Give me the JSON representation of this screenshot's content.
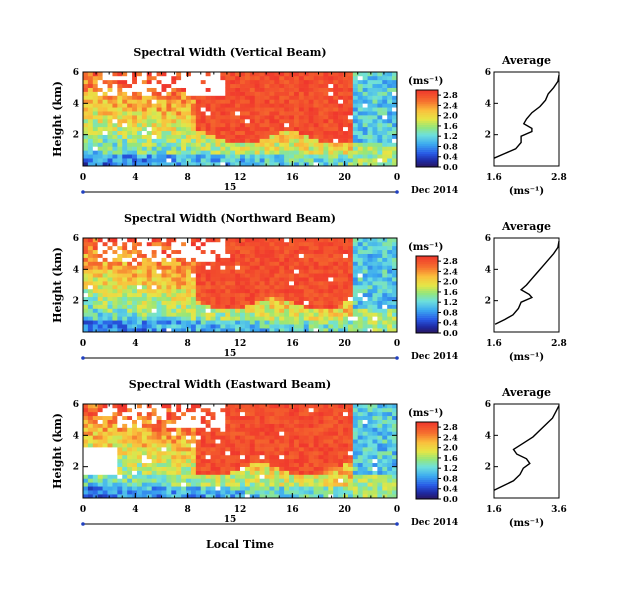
{
  "figure": {
    "xlabel_bottom": "Local Time",
    "date_label": "Dec 2014",
    "day_label": "15"
  },
  "chart_data": [
    {
      "type": "heatmap",
      "title": "Spectral Width (Vertical Beam)",
      "ylabel": "Height (km)",
      "x_ticks": [
        "0",
        "4",
        "8",
        "12",
        "16",
        "20",
        "0"
      ],
      "y_ticks": [
        "2",
        "4",
        "6"
      ],
      "xlim": [
        0,
        24
      ],
      "ylim": [
        0,
        6
      ],
      "colorbar": {
        "unit": "(ms⁻¹)",
        "ticks": [
          "0.0",
          "0.4",
          "0.8",
          "1.2",
          "1.6",
          "2.0",
          "2.4",
          "2.8"
        ],
        "range": [
          0,
          3.0
        ]
      },
      "average_profile": {
        "title": "Average",
        "xlabel": "(ms⁻¹)",
        "x_ticks": [
          "1.6",
          "2.8"
        ],
        "xlim": [
          1.6,
          2.8
        ],
        "y_ticks": [
          "2",
          "4",
          "6"
        ],
        "height": [
          0.5,
          0.8,
          1.1,
          1.5,
          1.9,
          2.2,
          2.4,
          2.7,
          3.0,
          3.4,
          3.8,
          4.2,
          4.6,
          5.0,
          5.4,
          5.8
        ],
        "value": [
          1.6,
          1.8,
          2.0,
          2.1,
          2.1,
          2.3,
          2.3,
          2.15,
          2.2,
          2.3,
          2.45,
          2.55,
          2.6,
          2.7,
          2.78,
          2.8
        ]
      }
    },
    {
      "type": "heatmap",
      "title": "Spectral Width (Northward Beam)",
      "ylabel": "Height (km)",
      "x_ticks": [
        "0",
        "4",
        "8",
        "12",
        "16",
        "20",
        "0"
      ],
      "y_ticks": [
        "2",
        "4",
        "6"
      ],
      "xlim": [
        0,
        24
      ],
      "ylim": [
        0,
        6
      ],
      "colorbar": {
        "unit": "(ms⁻¹)",
        "ticks": [
          "0.0",
          "0.4",
          "0.8",
          "1.2",
          "1.6",
          "2.0",
          "2.4",
          "2.8"
        ],
        "range": [
          0,
          3.0
        ]
      },
      "average_profile": {
        "title": "Average",
        "xlabel": "(ms⁻¹)",
        "x_ticks": [
          "1.6",
          "2.8"
        ],
        "xlim": [
          1.6,
          2.8
        ],
        "y_ticks": [
          "2",
          "4",
          "6"
        ],
        "height": [
          0.5,
          0.8,
          1.1,
          1.5,
          1.9,
          2.2,
          2.4,
          2.7,
          3.0,
          3.4,
          3.8,
          4.2,
          4.6,
          5.0,
          5.4,
          5.8
        ],
        "value": [
          1.62,
          1.8,
          1.95,
          2.05,
          2.1,
          2.3,
          2.25,
          2.1,
          2.2,
          2.3,
          2.4,
          2.5,
          2.6,
          2.7,
          2.78,
          2.8
        ]
      }
    },
    {
      "type": "heatmap",
      "title": "Spectral Width (Eastward Beam)",
      "ylabel": "Height (km)",
      "x_ticks": [
        "0",
        "4",
        "8",
        "12",
        "16",
        "20",
        "0"
      ],
      "y_ticks": [
        "2",
        "4",
        "6"
      ],
      "xlim": [
        0,
        24
      ],
      "ylim": [
        0,
        6
      ],
      "colorbar": {
        "unit": "(ms⁻¹)",
        "ticks": [
          "0.0",
          "0.4",
          "0.8",
          "1.2",
          "1.6",
          "2.0",
          "2.4",
          "2.8"
        ],
        "range": [
          0,
          3.0
        ]
      },
      "average_profile": {
        "title": "Average",
        "xlabel": "(ms⁻¹)",
        "x_ticks": [
          "1.6",
          "3.6"
        ],
        "xlim": [
          1.6,
          3.6
        ],
        "y_ticks": [
          "2",
          "4",
          "6"
        ],
        "height": [
          0.5,
          0.8,
          1.1,
          1.5,
          1.9,
          2.2,
          2.5,
          2.8,
          3.1,
          3.5,
          3.9,
          4.3,
          4.7,
          5.1,
          5.5,
          5.9
        ],
        "value": [
          1.6,
          1.9,
          2.2,
          2.4,
          2.5,
          2.7,
          2.6,
          2.3,
          2.2,
          2.5,
          2.8,
          3.0,
          3.2,
          3.4,
          3.5,
          3.6
        ]
      }
    }
  ]
}
